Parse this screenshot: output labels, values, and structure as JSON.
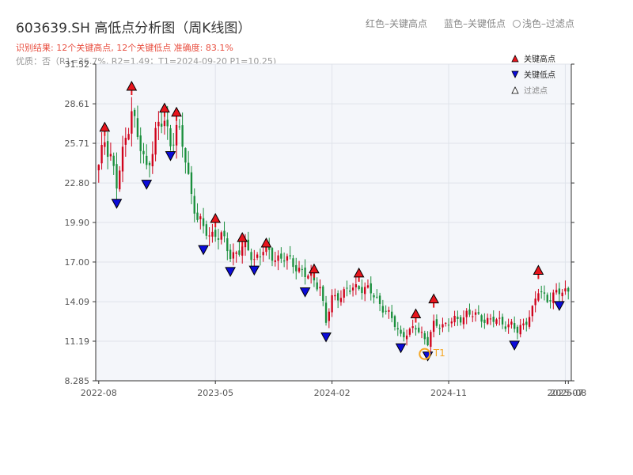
{
  "header": {
    "title": "603639.SH 高低点分析图（周K线图）",
    "legend_red": "红色–关键高点",
    "legend_blue": "蓝色–关键低点",
    "legend_light": "浅色–过滤点",
    "result_line": "识别结果: 12个关键高点, 12个关键低点  准确度: 83.1%",
    "quality_line": "优质：否（R1=36.7%, R2=1.49；T1=2024-09-20 P1=10.25)"
  },
  "legend": {
    "high": "关键高点",
    "low": "关键低点",
    "filtered": "过滤点"
  },
  "colors": {
    "up": "#d0021b",
    "down": "#1a8f3c",
    "high_marker": "#e8141c",
    "low_marker": "#0b0bd9",
    "t1_marker": "#f5a623",
    "plot_bg": "#f4f6fa",
    "grid": "#dfe3ea"
  },
  "chart_data": {
    "type": "candlestick",
    "x_tick_labels": [
      "2022-08",
      "2023-05",
      "2024-02",
      "2024-11",
      "2025-07",
      "2025-08"
    ],
    "x_ticks": [
      0,
      39,
      78,
      117,
      156,
      157
    ],
    "y_tick_labels": [
      "8.285",
      "11.19",
      "14.09",
      "17.00",
      "19.90",
      "22.80",
      "25.71",
      "28.61",
      "31.52"
    ],
    "y_ticks": [
      8.285,
      11.19,
      14.09,
      17.0,
      19.9,
      22.8,
      25.71,
      28.61,
      31.52
    ],
    "ylim": [
      8.285,
      31.52
    ],
    "xlim": [
      -1,
      158
    ],
    "grid": true,
    "t1_label": "T1",
    "t1": {
      "week": 109,
      "price": 10.25
    },
    "key_highs": [
      {
        "week": 2,
        "price": 26.6
      },
      {
        "week": 11,
        "price": 29.6
      },
      {
        "week": 22,
        "price": 28.0
      },
      {
        "week": 26,
        "price": 27.7
      },
      {
        "week": 39,
        "price": 19.9
      },
      {
        "week": 48,
        "price": 18.5
      },
      {
        "week": 56,
        "price": 18.1
      },
      {
        "week": 72,
        "price": 16.2
      },
      {
        "week": 87,
        "price": 15.9
      },
      {
        "week": 106,
        "price": 12.9
      },
      {
        "week": 112,
        "price": 14.0
      },
      {
        "week": 147,
        "price": 16.1
      }
    ],
    "key_lows": [
      {
        "week": 6,
        "price": 21.6
      },
      {
        "week": 16,
        "price": 23.0
      },
      {
        "week": 24,
        "price": 25.1
      },
      {
        "week": 35,
        "price": 18.2
      },
      {
        "week": 44,
        "price": 16.6
      },
      {
        "week": 52,
        "price": 16.7
      },
      {
        "week": 69,
        "price": 15.1
      },
      {
        "week": 76,
        "price": 11.8
      },
      {
        "week": 101,
        "price": 11.0
      },
      {
        "week": 110,
        "price": 10.4
      },
      {
        "week": 139,
        "price": 11.2
      },
      {
        "week": 154,
        "price": 14.1
      }
    ],
    "anchors": [
      [
        0,
        23.8
      ],
      [
        2,
        26.0
      ],
      [
        4,
        25.0
      ],
      [
        6,
        22.5
      ],
      [
        9,
        26.0
      ],
      [
        11,
        28.5
      ],
      [
        13,
        26.0
      ],
      [
        16,
        23.8
      ],
      [
        19,
        26.5
      ],
      [
        22,
        27.3
      ],
      [
        24,
        25.8
      ],
      [
        26,
        27.0
      ],
      [
        29,
        24.5
      ],
      [
        31,
        22.0
      ],
      [
        33,
        20.3
      ],
      [
        35,
        19.3
      ],
      [
        37,
        19.0
      ],
      [
        39,
        19.2
      ],
      [
        41,
        18.8
      ],
      [
        44,
        17.5
      ],
      [
        46,
        17.8
      ],
      [
        48,
        18.0
      ],
      [
        50,
        17.8
      ],
      [
        52,
        17.3
      ],
      [
        55,
        17.8
      ],
      [
        58,
        17.5
      ],
      [
        62,
        17.2
      ],
      [
        66,
        16.8
      ],
      [
        69,
        16.0
      ],
      [
        72,
        15.7
      ],
      [
        74,
        15.3
      ],
      [
        76,
        12.5
      ],
      [
        78,
        14.3
      ],
      [
        80,
        14.6
      ],
      [
        84,
        14.9
      ],
      [
        87,
        15.3
      ],
      [
        90,
        14.9
      ],
      [
        93,
        14.3
      ],
      [
        96,
        13.4
      ],
      [
        99,
        12.4
      ],
      [
        101,
        11.7
      ],
      [
        104,
        11.8
      ],
      [
        106,
        12.2
      ],
      [
        108,
        11.8
      ],
      [
        110,
        11.1
      ],
      [
        112,
        12.3
      ],
      [
        116,
        12.5
      ],
      [
        120,
        12.7
      ],
      [
        123,
        13.3
      ],
      [
        126,
        13.0
      ],
      [
        130,
        12.8
      ],
      [
        134,
        12.6
      ],
      [
        138,
        12.4
      ],
      [
        140,
        11.8
      ],
      [
        143,
        12.8
      ],
      [
        145,
        13.5
      ],
      [
        147,
        14.8
      ],
      [
        150,
        14.4
      ],
      [
        153,
        14.6
      ],
      [
        157,
        15.0
      ]
    ]
  }
}
